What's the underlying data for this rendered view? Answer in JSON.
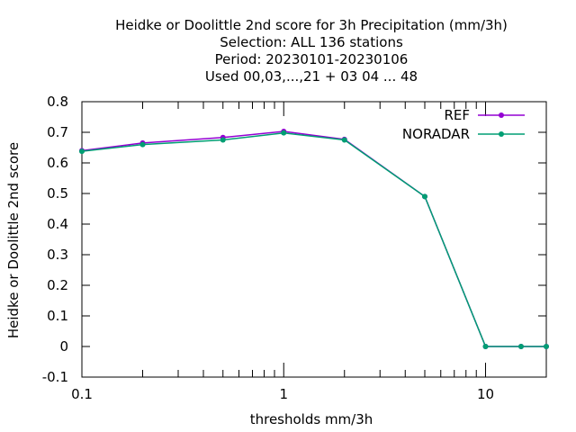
{
  "chart_data": {
    "type": "line",
    "title_lines": [
      "Heidke or Doolittle 2nd score  for 3h Precipitation (mm/3h)",
      "Selection: ALL    136 stations",
      "Period: 20230101-20230106",
      "Used  00,03,...,21  + 03 04 ... 48"
    ],
    "xlabel": "thresholds mm/3h",
    "ylabel": "Heidke or Doolittle 2nd score",
    "x_scale": "log",
    "xlim": [
      0.1,
      20
    ],
    "ylim": [
      -0.1,
      0.8
    ],
    "x_ticks": [
      {
        "value": 0.1,
        "label": "0.1"
      },
      {
        "value": 1,
        "label": "1"
      },
      {
        "value": 10,
        "label": "10"
      }
    ],
    "y_ticks": [
      {
        "value": -0.1,
        "label": "-0.1"
      },
      {
        "value": 0,
        "label": "0"
      },
      {
        "value": 0.1,
        "label": "0.1"
      },
      {
        "value": 0.2,
        "label": "0.2"
      },
      {
        "value": 0.3,
        "label": "0.3"
      },
      {
        "value": 0.4,
        "label": "0.4"
      },
      {
        "value": 0.5,
        "label": "0.5"
      },
      {
        "value": 0.6,
        "label": "0.6"
      },
      {
        "value": 0.7,
        "label": "0.7"
      },
      {
        "value": 0.8,
        "label": "0.8"
      }
    ],
    "x": [
      0.1,
      0.2,
      0.5,
      1,
      2,
      5,
      10,
      15,
      20
    ],
    "series": [
      {
        "name": "REF",
        "color": "#9400d3",
        "values": [
          0.64,
          0.665,
          0.683,
          0.703,
          0.677,
          0.49,
          0,
          0,
          0
        ]
      },
      {
        "name": "NORADAR",
        "color": "#009e73",
        "values": [
          0.638,
          0.66,
          0.675,
          0.698,
          0.675,
          0.49,
          0,
          0,
          0
        ]
      }
    ],
    "legend_position": "top-right",
    "grid": false
  }
}
